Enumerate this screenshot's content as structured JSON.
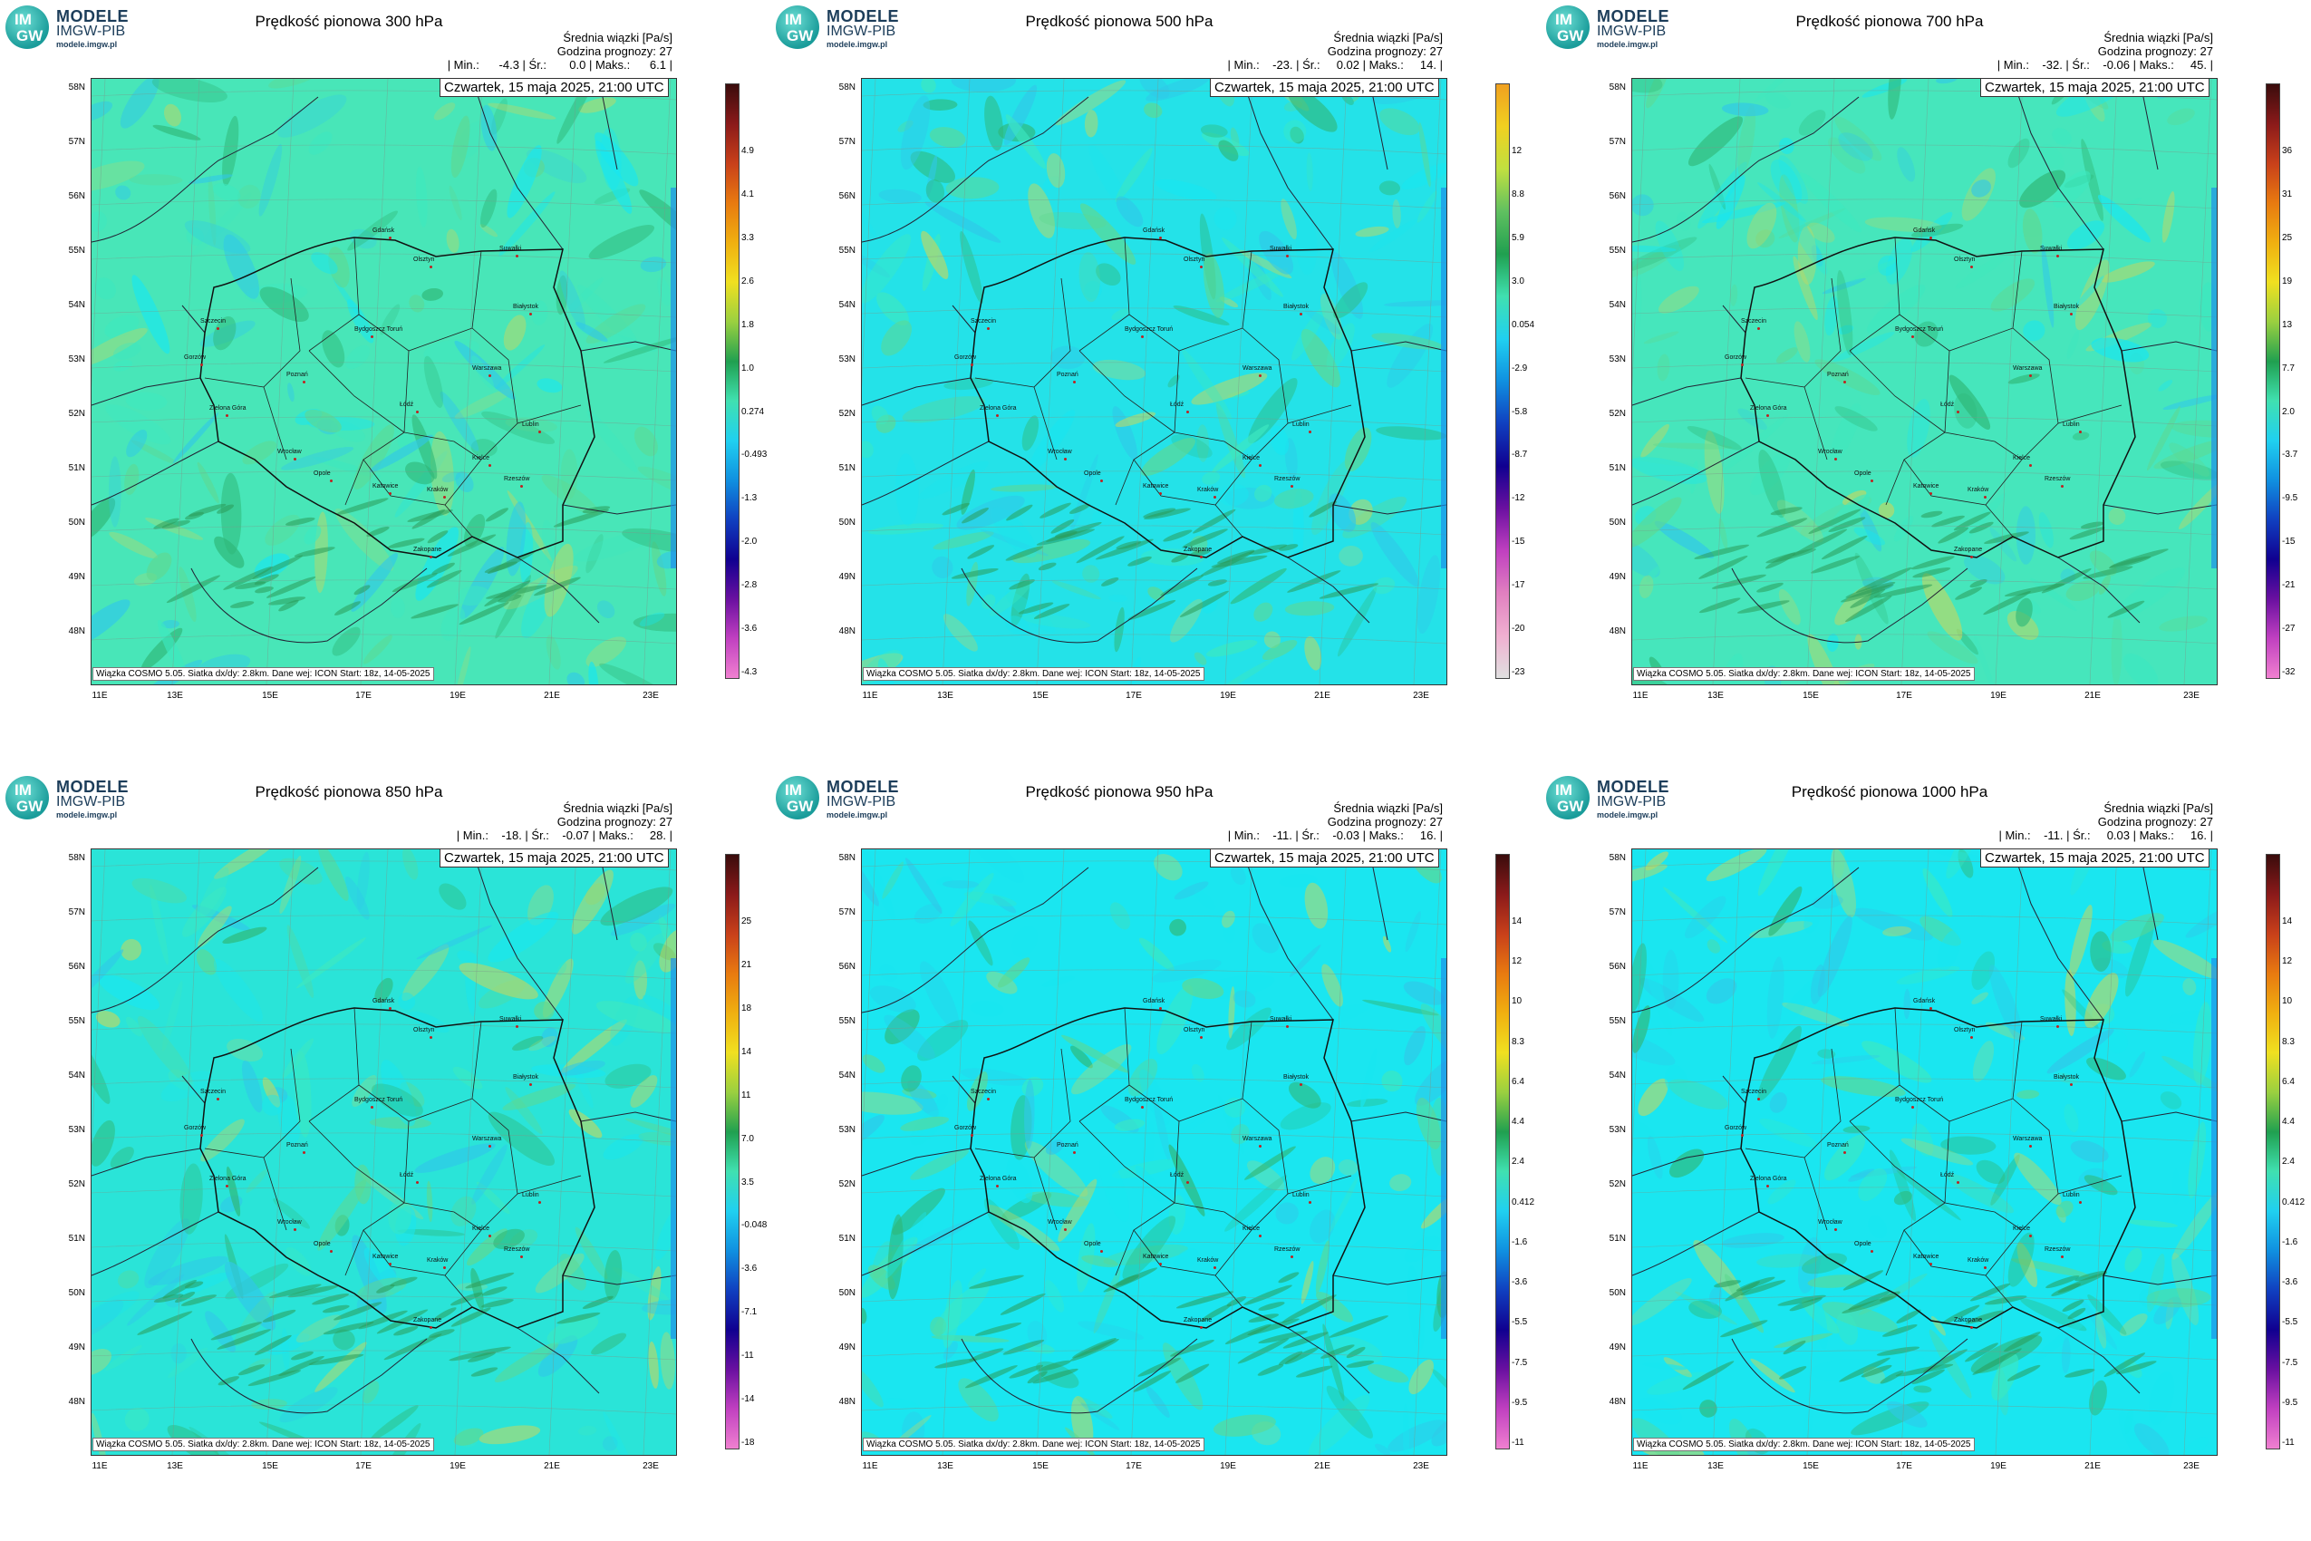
{
  "logo": {
    "badge_top": "IM",
    "badge_bottom": "GW",
    "line1": "MODELE",
    "line2": "IMGW-PIB",
    "line3": "modele.imgw.pl"
  },
  "common": {
    "subtitle": "Średnia wiązki [Pa/s]",
    "forecast_hour": "Godzina prognozy: 27",
    "date": "Czwartek, 15 maja 2025, 21:00 UTC",
    "footer": "Wiązka COSMO 5.05. Siatka dx/dy: 2.8km. Dane wej: ICON Start: 18z, 14-05-2025",
    "lat_labels": [
      "58N",
      "57N",
      "56N",
      "55N",
      "54N",
      "53N",
      "52N",
      "51N",
      "50N",
      "49N",
      "48N"
    ],
    "lon_labels": [
      "11E",
      "13E",
      "15E",
      "17E",
      "19E",
      "21E",
      "23E"
    ],
    "cities": [
      "Gdańsk",
      "Olsztyn",
      "Suwałki",
      "Białystok",
      "Szczecin",
      "Bydgoszcz Toruń",
      "Gorzów",
      "Poznań",
      "Warszawa",
      "Zielona Góra",
      "Łódź",
      "Lublin",
      "Wrocław",
      "Opole",
      "Kielce",
      "Katowice",
      "Kraków",
      "Rzeszów",
      "Zakopane"
    ]
  },
  "panels": [
    {
      "title": "Prędkość pionowa 300 hPa",
      "stats": "| Min.:      -4.3 | Śr.:       0.0 | Maks.:      6.1 |",
      "colorbar_ticks": [
        "4.9",
        "4.1",
        "3.3",
        "2.6",
        "1.8",
        "1.0",
        "0.274",
        "-0.493",
        "-1.3",
        "-2.0",
        "-2.8",
        "-3.6",
        "-4.3"
      ],
      "colorbar_colors": [
        "#3a0c0c",
        "#8b1a1a",
        "#c8401a",
        "#e87a10",
        "#f0b010",
        "#f0e020",
        "#9ad040",
        "#20a050",
        "#40e0b0",
        "#20d0f0",
        "#1090e0",
        "#1040c0",
        "#100090",
        "#6a10a0",
        "#c040c0",
        "#f080d0"
      ]
    },
    {
      "title": "Prędkość pionowa 500 hPa",
      "stats": "| Min.:    -23. | Śr.:     0.02 | Maks.:     14. |",
      "colorbar_ticks": [
        "12",
        "8.8",
        "5.9",
        "3.0",
        "0.054",
        "-2.9",
        "-5.8",
        "-8.7",
        "-12",
        "-15",
        "-17",
        "-20",
        "-23"
      ],
      "colorbar_colors": [
        "#f0a020",
        "#f0d020",
        "#c0e040",
        "#60c060",
        "#20a050",
        "#40e0b0",
        "#20d0f0",
        "#1090e0",
        "#1040c0",
        "#100090",
        "#6a10a0",
        "#c040c0",
        "#e080c0",
        "#f0b0d0",
        "#e0e0e0"
      ]
    },
    {
      "title": "Prędkość pionowa 700 hPa",
      "stats": "| Min.:    -32. | Śr.:    -0.06 | Maks.:     45. |",
      "colorbar_ticks": [
        "36",
        "31",
        "25",
        "19",
        "13",
        "7.7",
        "2.0",
        "-3.7",
        "-9.5",
        "-15",
        "-21",
        "-27",
        "-32"
      ],
      "colorbar_colors": [
        "#3a0c0c",
        "#8b1a1a",
        "#c8401a",
        "#e87a10",
        "#f0b010",
        "#f0e020",
        "#9ad040",
        "#20a050",
        "#40e0b0",
        "#20d0f0",
        "#1090e0",
        "#1040c0",
        "#100090",
        "#6a10a0",
        "#c040c0",
        "#f080d0"
      ]
    },
    {
      "title": "Prędkość pionowa 850 hPa",
      "stats": "| Min.:    -18. | Śr.:    -0.07 | Maks.:     28. |",
      "colorbar_ticks": [
        "25",
        "21",
        "18",
        "14",
        "11",
        "7.0",
        "3.5",
        "-0.048",
        "-3.6",
        "-7.1",
        "-11",
        "-14",
        "-18"
      ],
      "colorbar_colors": [
        "#3a0c0c",
        "#8b1a1a",
        "#c8401a",
        "#e87a10",
        "#f0b010",
        "#f0e020",
        "#9ad040",
        "#20a050",
        "#40e0b0",
        "#20d0f0",
        "#1090e0",
        "#1040c0",
        "#100090",
        "#6a10a0",
        "#c040c0",
        "#f080d0"
      ]
    },
    {
      "title": "Prędkość pionowa 950 hPa",
      "stats": "| Min.:    -11. | Śr.:    -0.03 | Maks.:     16. |",
      "colorbar_ticks": [
        "14",
        "12",
        "10",
        "8.3",
        "6.4",
        "4.4",
        "2.4",
        "0.412",
        "-1.6",
        "-3.6",
        "-5.5",
        "-7.5",
        "-9.5",
        "-11"
      ],
      "colorbar_colors": [
        "#3a0c0c",
        "#8b1a1a",
        "#c8401a",
        "#e87a10",
        "#f0b010",
        "#f0e020",
        "#9ad040",
        "#20a050",
        "#40e0b0",
        "#20d0f0",
        "#1090e0",
        "#1040c0",
        "#100090",
        "#6a10a0",
        "#c040c0",
        "#f080d0"
      ]
    },
    {
      "title": "Prędkość pionowa 1000 hPa",
      "stats": "| Min.:    -11. | Śr.:     0.03 | Maks.:     16. |",
      "colorbar_ticks": [
        "14",
        "12",
        "10",
        "8.3",
        "6.4",
        "4.4",
        "2.4",
        "0.412",
        "-1.6",
        "-3.6",
        "-5.5",
        "-7.5",
        "-9.5",
        "-11"
      ],
      "colorbar_colors": [
        "#3a0c0c",
        "#8b1a1a",
        "#c8401a",
        "#e87a10",
        "#f0b010",
        "#f0e020",
        "#9ad040",
        "#20a050",
        "#40e0b0",
        "#20d0f0",
        "#1090e0",
        "#1040c0",
        "#100090",
        "#6a10a0",
        "#c040c0",
        "#f080d0"
      ]
    }
  ],
  "colors": {
    "field_main": "#3de8c0",
    "field_cyan": "#18e6f0",
    "field_green": "#5fd890",
    "field_yellow": "#b8d868"
  }
}
